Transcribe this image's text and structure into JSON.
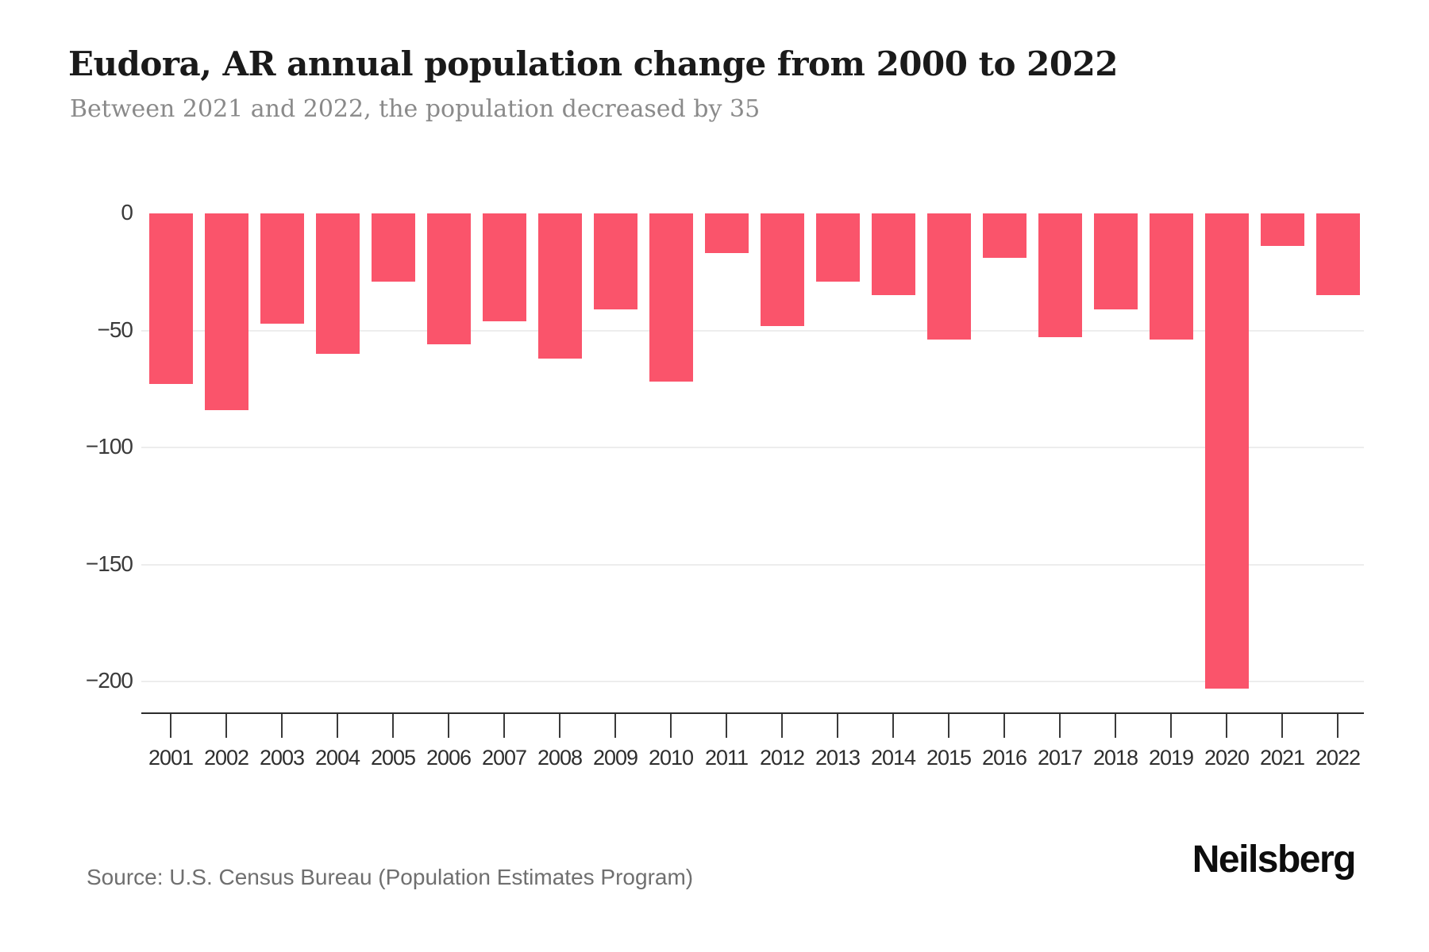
{
  "header": {
    "title": "Eudora, AR annual population change from 2000 to 2022",
    "subtitle": "Between 2021 and 2022, the population decreased by 35"
  },
  "footer": {
    "source": "Source: U.S. Census Bureau (Population Estimates Program)",
    "brand": "Neilsberg"
  },
  "chart_data": {
    "type": "bar",
    "title": "Eudora, AR annual population change from 2000 to 2022",
    "subtitle": "Between 2021 and 2022, the population decreased by 35",
    "categories": [
      "2001",
      "2002",
      "2003",
      "2004",
      "2005",
      "2006",
      "2007",
      "2008",
      "2009",
      "2010",
      "2011",
      "2012",
      "2013",
      "2014",
      "2015",
      "2016",
      "2017",
      "2018",
      "2019",
      "2020",
      "2021",
      "2022"
    ],
    "values": [
      -73,
      -84,
      -47,
      -60,
      -29,
      -56,
      -46,
      -62,
      -41,
      -72,
      -17,
      -48,
      -29,
      -35,
      -54,
      -19,
      -53,
      -41,
      -54,
      -203,
      -14,
      -35
    ],
    "xlabel": "",
    "ylabel": "",
    "ylim": [
      -214,
      0
    ],
    "yticks": [
      0,
      -50,
      -100,
      -150,
      -200
    ],
    "ytick_labels": [
      "0",
      "−50",
      "−100",
      "−150",
      "−200"
    ],
    "grid": "horizontal",
    "legend": "none",
    "colors": {
      "bar": "#fa546b",
      "grid": "#ededed",
      "axis": "#2b2b2b",
      "title": "#1a1a1a",
      "subtitle": "#8a8a8a",
      "source": "#6f6f6f",
      "tick_label": "#2e2e2e"
    }
  }
}
